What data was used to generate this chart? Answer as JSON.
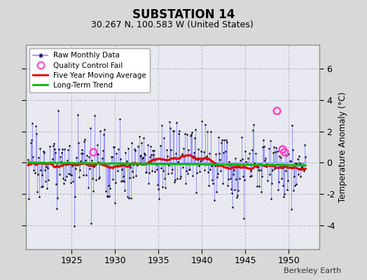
{
  "title": "SUBSTATION 14",
  "subtitle": "30.267 N, 100.583 W (United States)",
  "ylabel": "Temperature Anomaly (°C)",
  "attribution": "Berkeley Earth",
  "year_start": 1920.0,
  "year_end": 1953.5,
  "ylim": [
    -5.5,
    7.5
  ],
  "yticks": [
    -4,
    -2,
    0,
    2,
    4,
    6
  ],
  "xticks": [
    1925,
    1930,
    1935,
    1940,
    1945,
    1950
  ],
  "background_color": "#d8d8d8",
  "plot_bg_color": "#e8e8f0",
  "grid_color": "#bbbbcc",
  "raw_line_color": "#8888ff",
  "raw_dot_color": "#111111",
  "moving_avg_color": "#dd0000",
  "trend_color": "#00bb00",
  "qc_fail_color": "#ff44cc",
  "seed": 17,
  "n_months": 384,
  "qc_positions": [
    [
      1927.5,
      0.7
    ],
    [
      1948.6,
      3.3
    ],
    [
      1949.2,
      0.85
    ],
    [
      1949.5,
      0.7
    ]
  ]
}
